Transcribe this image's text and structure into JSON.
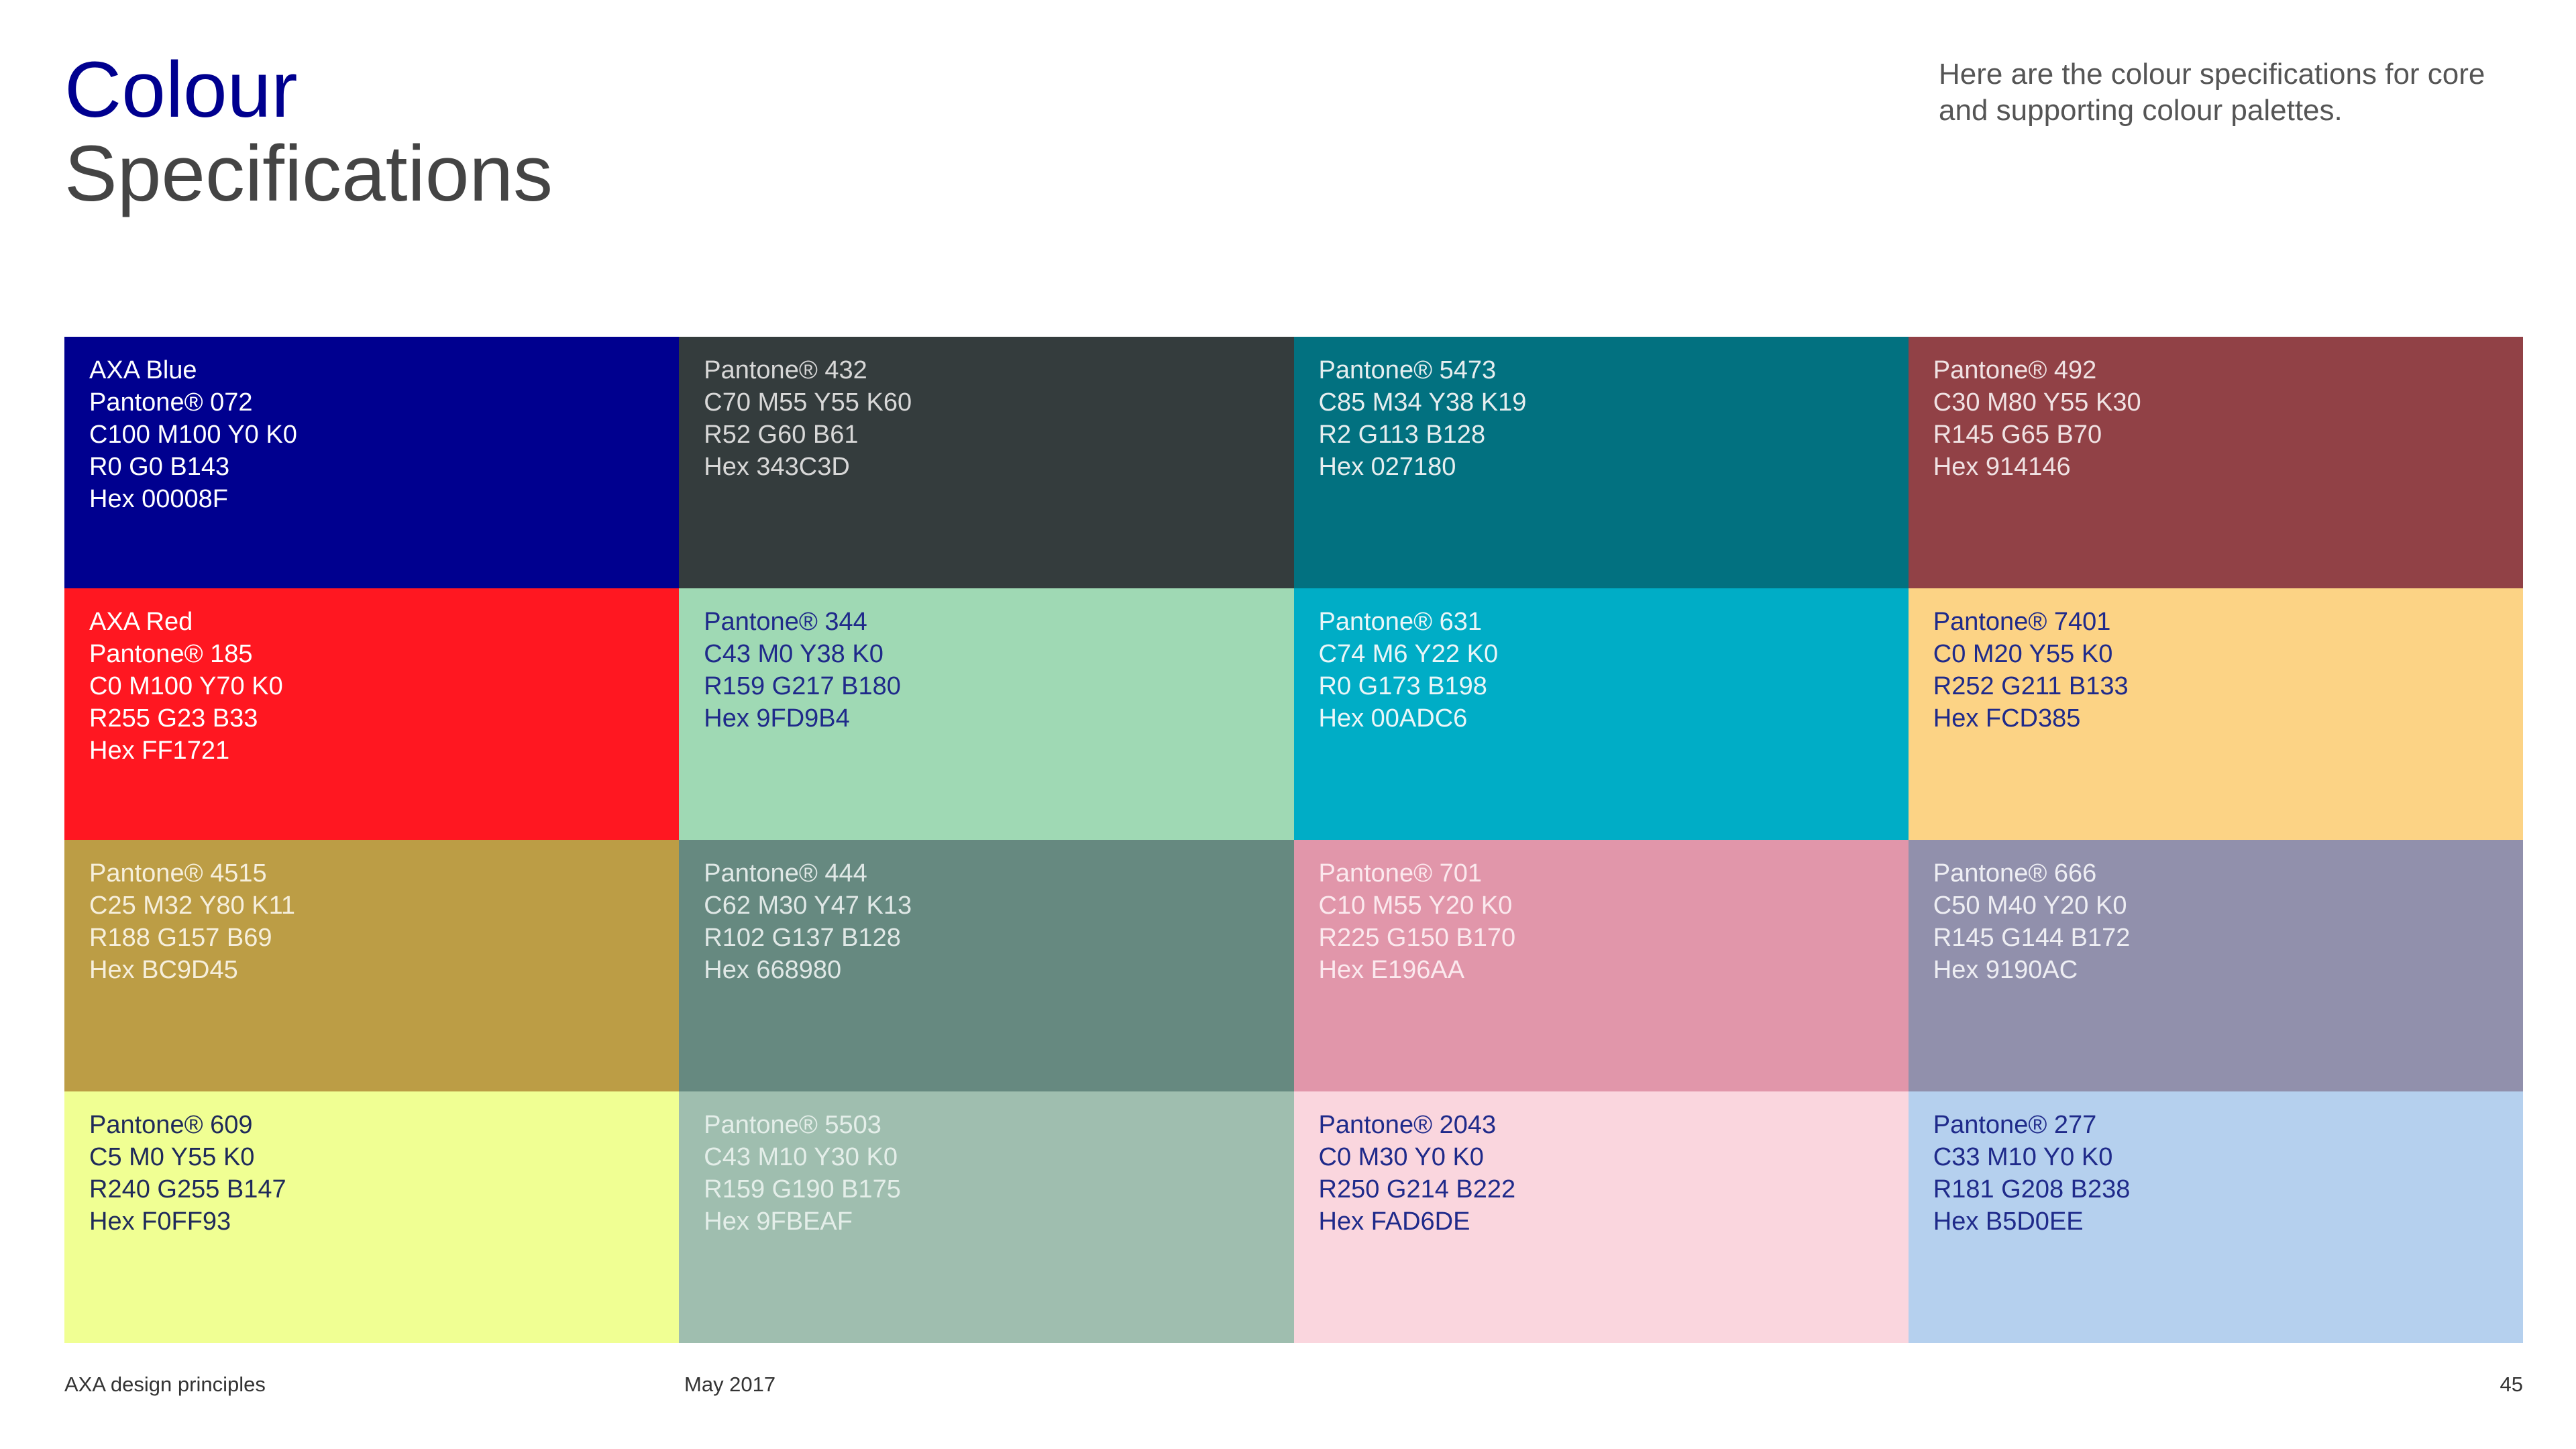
{
  "header": {
    "title": [
      "Colour",
      "Specifications"
    ],
    "intro": [
      "Here are the colour specifications for core",
      "and supporting colour palettes."
    ]
  },
  "swatches": [
    {
      "color": "#00008F",
      "text_color": "#ffffff",
      "lines": [
        "AXA Blue",
        "Pantone® 072",
        "C100 M100 Y0 K0",
        "R0 G0 B143",
        "Hex 00008F"
      ]
    },
    {
      "color": "#343C3D",
      "text_color": "#d8d8d8",
      "lines": [
        "Pantone® 432",
        "C70 M55 Y55 K60",
        "R52 G60 B61",
        "Hex 343C3D"
      ]
    },
    {
      "color": "#027180",
      "text_color": "#e6eeef",
      "lines": [
        "Pantone® 5473",
        "C85 M34 Y38 K19",
        "R2 G113 B128",
        "Hex 027180"
      ]
    },
    {
      "color": "#914146",
      "text_color": "#f0e2e3",
      "lines": [
        "Pantone® 492",
        "C30 M80 Y55 K30",
        "R145 G65 B70",
        "Hex 914146"
      ]
    },
    {
      "color": "#FF1721",
      "text_color": "#ffffff",
      "lines": [
        "AXA Red",
        "Pantone® 185",
        "C0 M100 Y70 K0",
        "R255 G23 B33",
        "Hex FF1721"
      ]
    },
    {
      "color": "#9FD9B4",
      "text_color": "#1f2a8a",
      "lines": [
        "Pantone® 344",
        "C43 M0 Y38 K0",
        "R159 G217 B180",
        "Hex 9FD9B4"
      ]
    },
    {
      "color": "#00ADC6",
      "text_color": "#eaf6f8",
      "lines": [
        "Pantone® 631",
        "C74 M6 Y22 K0",
        "R0 G173 B198",
        "Hex 00ADC6"
      ]
    },
    {
      "color": "#FCD385",
      "text_color": "#1f2a8a",
      "lines": [
        "Pantone® 7401",
        "C0 M20 Y55 K0",
        "R252 G211 B133",
        "Hex FCD385"
      ]
    },
    {
      "color": "#BC9D45",
      "text_color": "#f6efdc",
      "lines": [
        "Pantone® 4515",
        "C25 M32 Y80 K11",
        "R188 G157 B69",
        "Hex BC9D45"
      ]
    },
    {
      "color": "#668980",
      "text_color": "#e0e8e6",
      "lines": [
        "Pantone® 444",
        "C62 M30 Y47 K13",
        "R102 G137 B128",
        "Hex 668980"
      ]
    },
    {
      "color": "#E196AA",
      "text_color": "#fbe9ee",
      "lines": [
        "Pantone® 701",
        "C10 M55 Y20 K0",
        "R225 G150 B170",
        "Hex E196AA"
      ]
    },
    {
      "color": "#9190AC",
      "text_color": "#eeeef3",
      "lines": [
        "Pantone® 666",
        "C50 M40 Y20 K0",
        "R145 G144 B172",
        "Hex 9190AC"
      ]
    },
    {
      "color": "#F0FF93",
      "text_color": "#1f2a5a",
      "lines": [
        "Pantone® 609",
        "C5 M0 Y55 K0",
        "R240 G255 B147",
        "Hex F0FF93"
      ]
    },
    {
      "color": "#9FBEAF",
      "text_color": "#e4eee9",
      "lines": [
        "Pantone® 5503",
        "C43 M10 Y30 K0",
        "R159 G190 B175",
        "Hex 9FBEAF"
      ]
    },
    {
      "color": "#FAD6DE",
      "text_color": "#1f2a8a",
      "lines": [
        "Pantone® 2043",
        "C0 M30 Y0 K0",
        "R250 G214 B222",
        "Hex FAD6DE"
      ]
    },
    {
      "color": "#B5D0EE",
      "text_color": "#1f2a8a",
      "lines": [
        "Pantone® 277",
        "C33 M10 Y0 K0",
        "R181 G208 B238",
        "Hex B5D0EE"
      ]
    }
  ],
  "footer": {
    "left": "AXA design principles",
    "middle": "May 2017",
    "page": "45"
  }
}
